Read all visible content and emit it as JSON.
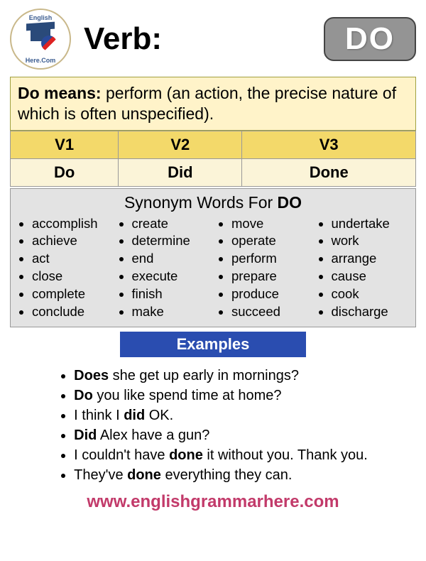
{
  "header": {
    "logo_top": "English",
    "logo_bottom": "Here.Com",
    "verb_label": "Verb:",
    "verb_badge": "DO"
  },
  "definition": {
    "lead": "Do",
    "means_word": " means: ",
    "body": "perform (an action, the precise nature of which is often unspecified)."
  },
  "forms": {
    "headers": [
      "V1",
      "V2",
      "V3"
    ],
    "values": [
      "Do",
      "Did",
      "Done"
    ],
    "header_bg": "#f3d96a",
    "cell_bg": "#fbf4d8"
  },
  "synonyms": {
    "title_prefix": "Synonym Words For ",
    "title_word": "DO",
    "box_bg": "#e3e3e3",
    "columns": [
      [
        "accomplish",
        "achieve",
        "act",
        "close",
        "complete",
        "conclude"
      ],
      [
        "create",
        "determine",
        "end",
        "execute",
        "finish",
        "make"
      ],
      [
        "move",
        "operate",
        "perform",
        "prepare",
        "produce",
        "succeed"
      ],
      [
        "undertake",
        "work",
        "arrange",
        "cause",
        "cook",
        "discharge"
      ]
    ]
  },
  "examples": {
    "label": "Examples",
    "label_bg": "#2a4db0",
    "items": [
      {
        "pre": "",
        "bold": "Does",
        "post": " she get up early in mornings?"
      },
      {
        "pre": "",
        "bold": "Do",
        "post": " you like spend time at home?"
      },
      {
        "pre": "I think I ",
        "bold": "did",
        "post": " OK."
      },
      {
        "pre": "",
        "bold": "Did",
        "post": " Alex have a gun?"
      },
      {
        "pre": "I couldn't have ",
        "bold": "done",
        "post": " it without you. Thank you."
      },
      {
        "pre": "They've ",
        "bold": "done",
        "post": " everything they can."
      }
    ]
  },
  "footer": {
    "url": "www.englishgrammarhere.com",
    "color": "#c23a6a"
  }
}
